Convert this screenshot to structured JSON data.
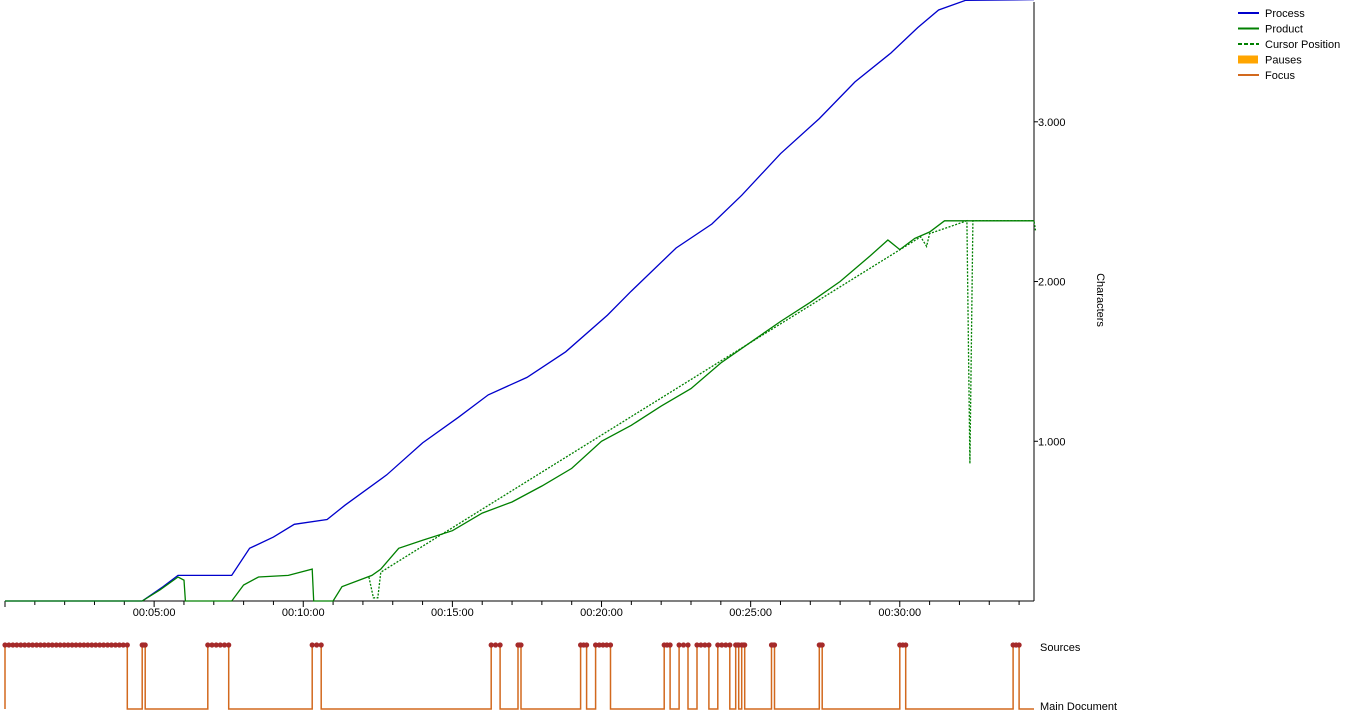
{
  "chart_data": {
    "type": "line",
    "title": "",
    "ylabel": "Characters",
    "xlabel": "",
    "x_unit": "minutes",
    "xlim": [
      0,
      34.5
    ],
    "ylim": [
      0,
      3750
    ],
    "x_ticks": [
      {
        "x": 5,
        "label": "00:05:00"
      },
      {
        "x": 10,
        "label": "00:10:00"
      },
      {
        "x": 15,
        "label": "00:15:00"
      },
      {
        "x": 20,
        "label": "00:20:00"
      },
      {
        "x": 25,
        "label": "00:25:00"
      },
      {
        "x": 30,
        "label": "00:30:00"
      }
    ],
    "y_ticks": [
      {
        "y": 1000,
        "label": "1.000"
      },
      {
        "y": 2000,
        "label": "2.000"
      },
      {
        "y": 3000,
        "label": "3.000"
      }
    ],
    "legend": {
      "placement": "top-right",
      "items": [
        {
          "label": "Process",
          "color": "#0000cc",
          "style": "solid"
        },
        {
          "label": "Product",
          "color": "#008000",
          "style": "solid"
        },
        {
          "label": "Cursor Position",
          "color": "#008000",
          "style": "dashed"
        },
        {
          "label": "Pauses",
          "color": "#ffa500",
          "style": "block"
        },
        {
          "label": "Focus",
          "color": "#d2691e",
          "style": "solid"
        }
      ]
    },
    "series": [
      {
        "name": "Process",
        "color": "#0000cc",
        "points": [
          [
            0,
            0
          ],
          [
            4.6,
            0
          ],
          [
            5.3,
            90
          ],
          [
            5.8,
            160
          ],
          [
            7.6,
            160
          ],
          [
            8.2,
            330
          ],
          [
            9.0,
            400
          ],
          [
            9.7,
            480
          ],
          [
            10.8,
            510
          ],
          [
            11.4,
            600
          ],
          [
            12.8,
            790
          ],
          [
            14.0,
            990
          ],
          [
            15.2,
            1150
          ],
          [
            16.2,
            1290
          ],
          [
            17.5,
            1400
          ],
          [
            18.8,
            1560
          ],
          [
            20.2,
            1790
          ],
          [
            21.0,
            1940
          ],
          [
            22.5,
            2210
          ],
          [
            23.7,
            2360
          ],
          [
            24.7,
            2540
          ],
          [
            26.0,
            2800
          ],
          [
            27.3,
            3020
          ],
          [
            28.5,
            3250
          ],
          [
            29.7,
            3430
          ],
          [
            30.6,
            3590
          ],
          [
            31.3,
            3700
          ],
          [
            32.2,
            3760
          ],
          [
            34.5,
            3765
          ]
        ]
      },
      {
        "name": "Product",
        "color": "#008000",
        "points": [
          [
            0,
            0
          ],
          [
            4.6,
            0
          ],
          [
            5.2,
            70
          ],
          [
            5.8,
            150
          ],
          [
            6.0,
            130
          ],
          [
            6.05,
            0
          ],
          [
            7.6,
            0
          ],
          [
            8.0,
            100
          ],
          [
            8.5,
            150
          ],
          [
            9.5,
            160
          ],
          [
            10.3,
            200
          ],
          [
            10.35,
            0
          ],
          [
            11.0,
            0
          ],
          [
            11.3,
            90
          ],
          [
            12.3,
            160
          ],
          [
            12.6,
            200
          ],
          [
            13.2,
            330
          ],
          [
            14.0,
            380
          ],
          [
            15.0,
            440
          ],
          [
            16.0,
            550
          ],
          [
            17.0,
            620
          ],
          [
            18.0,
            720
          ],
          [
            19.0,
            830
          ],
          [
            20.0,
            1000
          ],
          [
            21.0,
            1100
          ],
          [
            22.0,
            1220
          ],
          [
            23.0,
            1330
          ],
          [
            24.0,
            1490
          ],
          [
            25.0,
            1620
          ],
          [
            26.0,
            1750
          ],
          [
            27.0,
            1870
          ],
          [
            28.0,
            2000
          ],
          [
            29.0,
            2160
          ],
          [
            29.6,
            2260
          ],
          [
            30.0,
            2200
          ],
          [
            30.5,
            2270
          ],
          [
            31.0,
            2310
          ],
          [
            31.5,
            2380
          ],
          [
            34.5,
            2380
          ]
        ]
      },
      {
        "name": "Cursor Position",
        "color": "#008000",
        "dashed": true,
        "points": [
          [
            12.2,
            150
          ],
          [
            12.35,
            20
          ],
          [
            12.5,
            20
          ],
          [
            12.6,
            180
          ],
          [
            30.7,
            2280
          ],
          [
            30.9,
            2220
          ],
          [
            31.0,
            2300
          ],
          [
            32.25,
            2380
          ],
          [
            32.35,
            860
          ],
          [
            32.45,
            2380
          ],
          [
            34.5,
            2380
          ],
          [
            34.55,
            2320
          ]
        ]
      }
    ],
    "focus_track": {
      "labels": {
        "top": "Sources",
        "bottom": "Main Document"
      },
      "color": "#d2691e",
      "marker_color": "#a52a2a",
      "sources_intervals": [
        [
          0,
          4.1
        ],
        [
          4.6,
          4.7
        ],
        [
          6.8,
          7.5
        ],
        [
          10.3,
          10.6
        ],
        [
          16.3,
          16.6
        ],
        [
          17.2,
          17.3
        ],
        [
          19.3,
          19.5
        ],
        [
          19.8,
          20.3
        ],
        [
          22.1,
          22.3
        ],
        [
          22.6,
          22.9
        ],
        [
          23.2,
          23.6
        ],
        [
          23.9,
          24.3
        ],
        [
          24.5,
          24.6
        ],
        [
          24.7,
          24.8
        ],
        [
          25.7,
          25.8
        ],
        [
          27.3,
          27.4
        ],
        [
          30.0,
          30.2
        ],
        [
          33.8,
          34.0
        ]
      ]
    }
  }
}
